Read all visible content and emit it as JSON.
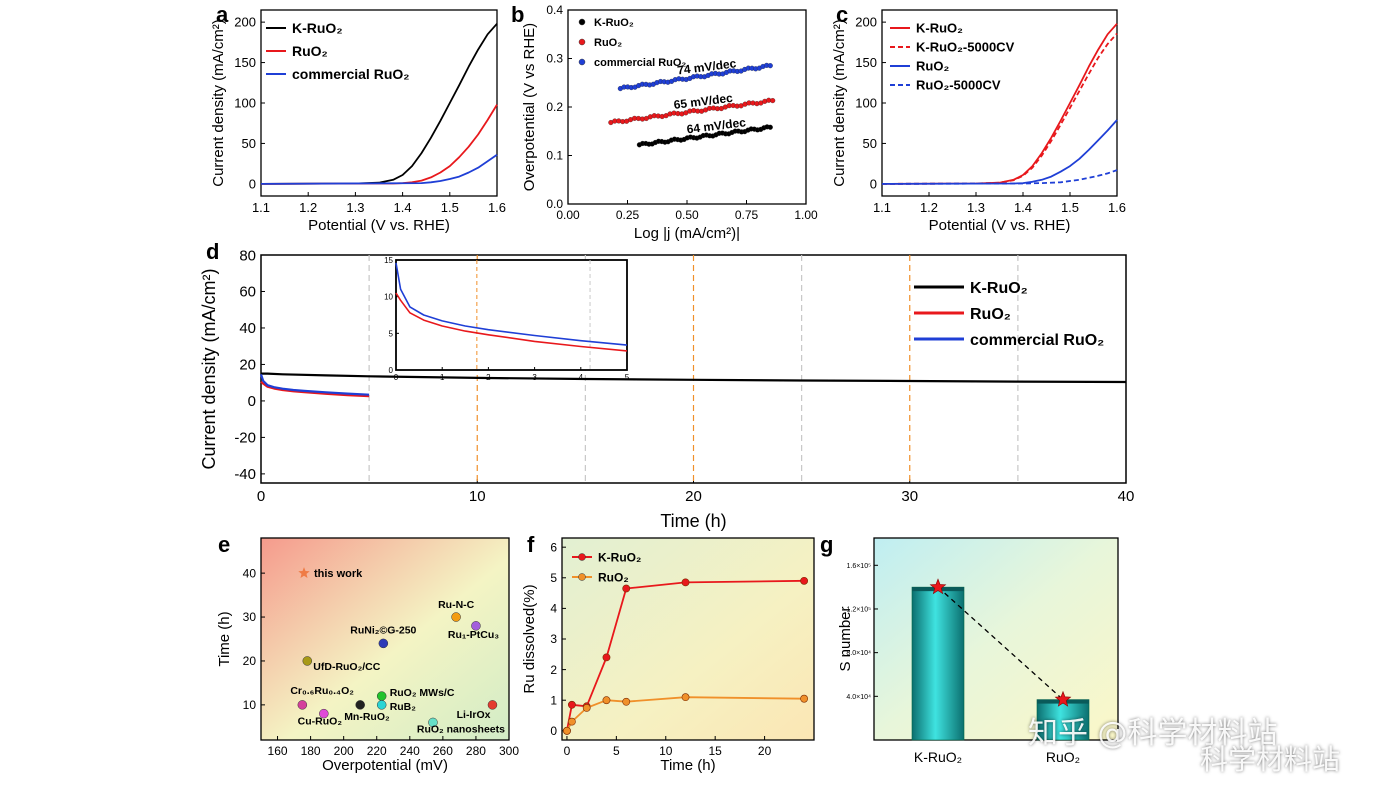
{
  "watermark": {
    "primary": "知乎 @科学材料站",
    "secondary": "科学材料站"
  },
  "chart_data": [
    {
      "panel": "a",
      "type": "line",
      "xlabel": "Potential (V vs. RHE)",
      "ylabel": "Current density (mA/cm²)",
      "xlim": [
        1.1,
        1.6
      ],
      "ylim": [
        -15,
        215
      ],
      "xticks": [
        "1.1",
        "1.2",
        "1.3",
        "1.4",
        "1.5",
        "1.6"
      ],
      "yticks": [
        "0",
        "50",
        "100",
        "150",
        "200"
      ],
      "legend": "top-left",
      "series": [
        {
          "name": "K-RuO₂",
          "color": "#000000",
          "x": [
            1.1,
            1.3,
            1.35,
            1.38,
            1.4,
            1.42,
            1.44,
            1.46,
            1.48,
            1.5,
            1.52,
            1.54,
            1.56,
            1.58,
            1.6
          ],
          "y": [
            0,
            0.5,
            1.5,
            5,
            11,
            22,
            38,
            57,
            78,
            100,
            122,
            145,
            166,
            185,
            198
          ]
        },
        {
          "name": "RuO₂",
          "color": "#e8181c",
          "x": [
            1.1,
            1.38,
            1.4,
            1.42,
            1.44,
            1.46,
            1.48,
            1.5,
            1.52,
            1.54,
            1.56,
            1.58,
            1.6
          ],
          "y": [
            0,
            0.5,
            1,
            2,
            4,
            8,
            14,
            22,
            33,
            46,
            61,
            79,
            98
          ]
        },
        {
          "name": "commercial RuO₂",
          "color": "#1f3fd6",
          "x": [
            1.1,
            1.44,
            1.46,
            1.48,
            1.5,
            1.52,
            1.54,
            1.56,
            1.58,
            1.6
          ],
          "y": [
            0,
            1,
            2,
            3.5,
            6,
            9,
            14,
            20,
            28,
            36
          ]
        }
      ]
    },
    {
      "panel": "b",
      "type": "scatter",
      "xlabel": "Log |j (mA/cm²)|",
      "ylabel": "Overpotential (V vs RHE)",
      "xlim": [
        0.0,
        1.0
      ],
      "ylim": [
        0.0,
        0.4
      ],
      "xticks": [
        "0.00",
        "0.25",
        "0.50",
        "0.75",
        "1.00"
      ],
      "yticks": [
        "0.0",
        "0.1",
        "0.2",
        "0.3",
        "0.4"
      ],
      "legend": "top-left",
      "series": [
        {
          "name": "K-RuO₂",
          "color": "#000000",
          "x_range": [
            0.3,
            0.85
          ],
          "y_range": [
            0.122,
            0.158
          ],
          "slope_label": "64 mV/dec"
        },
        {
          "name": "RuO₂",
          "color": "#e8181c",
          "x_range": [
            0.18,
            0.86
          ],
          "y_range": [
            0.168,
            0.213
          ],
          "slope_label": "65 mV/dec"
        },
        {
          "name": "commercial RuO₂",
          "color": "#1f3fd6",
          "x_range": [
            0.22,
            0.85
          ],
          "y_range": [
            0.238,
            0.285
          ],
          "slope_label": "74 mV/dec"
        }
      ]
    },
    {
      "panel": "c",
      "type": "line",
      "xlabel": "Potential (V vs. RHE)",
      "ylabel": "Current density (mA/cm²)",
      "xlim": [
        1.1,
        1.6
      ],
      "ylim": [
        -15,
        215
      ],
      "xticks": [
        "1.1",
        "1.2",
        "1.3",
        "1.4",
        "1.5",
        "1.6"
      ],
      "yticks": [
        "0",
        "50",
        "100",
        "150",
        "200"
      ],
      "legend": "top-left",
      "series": [
        {
          "name": "K-RuO₂",
          "color": "#e8181c",
          "dash": false,
          "x": [
            1.1,
            1.3,
            1.35,
            1.38,
            1.4,
            1.42,
            1.44,
            1.46,
            1.48,
            1.5,
            1.52,
            1.54,
            1.56,
            1.58,
            1.6
          ],
          "y": [
            0,
            0.5,
            1.5,
            5,
            11,
            22,
            38,
            57,
            78,
            100,
            122,
            145,
            166,
            185,
            198
          ]
        },
        {
          "name": "K-RuO₂-5000CV",
          "color": "#e8181c",
          "dash": true,
          "x": [
            1.1,
            1.3,
            1.35,
            1.38,
            1.4,
            1.42,
            1.44,
            1.46,
            1.48,
            1.5,
            1.52,
            1.54,
            1.56,
            1.58,
            1.6
          ],
          "y": [
            0,
            0.5,
            1.5,
            4.5,
            10,
            20,
            35,
            53,
            73,
            94,
            115,
            136,
            156,
            173,
            186
          ]
        },
        {
          "name": "RuO₂",
          "color": "#1f3fd6",
          "dash": false,
          "x": [
            1.1,
            1.38,
            1.4,
            1.42,
            1.44,
            1.46,
            1.48,
            1.5,
            1.52,
            1.54,
            1.56,
            1.58,
            1.6
          ],
          "y": [
            0,
            0.5,
            1,
            2.5,
            5,
            9,
            15,
            22,
            31,
            42,
            54,
            66,
            79
          ]
        },
        {
          "name": "RuO₂-5000CV",
          "color": "#1f3fd6",
          "dash": true,
          "x": [
            1.1,
            1.4,
            1.44,
            1.48,
            1.5,
            1.52,
            1.54,
            1.56,
            1.58,
            1.6
          ],
          "y": [
            0,
            0.5,
            1,
            2,
            3.5,
            5,
            7.5,
            10,
            13,
            17
          ]
        }
      ]
    },
    {
      "panel": "d",
      "type": "line",
      "xlabel": "Time (h)",
      "ylabel": "Current density (mA/cm²)",
      "xlim": [
        0,
        40
      ],
      "ylim": [
        -45,
        80
      ],
      "xticks": [
        "0",
        "10",
        "20",
        "30",
        "40"
      ],
      "yticks": [
        "-40",
        "-20",
        "0",
        "20",
        "40",
        "60",
        "80"
      ],
      "legend": "right",
      "series": [
        {
          "name": "K-RuO₂",
          "color": "#000000",
          "x": [
            0,
            0.3,
            1,
            3,
            5,
            10,
            15,
            20,
            25,
            30,
            35,
            40
          ],
          "y": [
            15,
            15,
            14.6,
            14,
            13.5,
            12.6,
            12,
            11.6,
            11.2,
            10.9,
            10.6,
            10.4
          ]
        },
        {
          "name": "RuO₂",
          "color": "#e8181c",
          "x": [
            0,
            0.1,
            0.3,
            0.6,
            1,
            1.5,
            2,
            3,
            4,
            5
          ],
          "y": [
            10.5,
            9.5,
            7.8,
            6.8,
            6,
            5.3,
            4.8,
            3.9,
            3.2,
            2.6
          ]
        },
        {
          "name": "commercial RuO₂",
          "color": "#1f3fd6",
          "x": [
            0,
            0.1,
            0.3,
            0.6,
            1,
            1.5,
            2,
            3,
            4,
            5
          ],
          "y": [
            14.6,
            11,
            8.6,
            7.5,
            6.7,
            6,
            5.5,
            4.7,
            4,
            3.4
          ]
        }
      ],
      "inset": {
        "xlim": [
          0,
          5
        ],
        "ylim": [
          0,
          15
        ],
        "xticks": [
          "0",
          "1",
          "2",
          "3",
          "4",
          "5"
        ],
        "yticks": [
          "0",
          "5",
          "10",
          "15"
        ]
      }
    },
    {
      "panel": "e",
      "type": "scatter",
      "xlabel": "Overpotential (mV)",
      "ylabel": "Time (h)",
      "xlim": [
        150,
        300
      ],
      "ylim": [
        2,
        48
      ],
      "xticks": [
        "160",
        "180",
        "200",
        "220",
        "240",
        "260",
        "280",
        "300"
      ],
      "yticks": [
        "10",
        "20",
        "30",
        "40"
      ],
      "points": [
        {
          "label": "this work",
          "x": 176,
          "y": 40,
          "color": "#ef7b45",
          "marker": "star"
        },
        {
          "label": "Ru-N-C",
          "x": 268,
          "y": 30,
          "color": "#f39c12"
        },
        {
          "label": "RuNi₂©G-250",
          "x": 224,
          "y": 24,
          "color": "#2e3bb8"
        },
        {
          "label": "Ru₁-PtCu₃",
          "x": 280,
          "y": 28,
          "color": "#a35fdc"
        },
        {
          "label": "UfD-RuO₂/CC",
          "x": 178,
          "y": 20,
          "color": "#a89a16"
        },
        {
          "label": "Cr₀.₆Ru₀.₄O₂",
          "x": 175,
          "y": 10,
          "color": "#d43f9c"
        },
        {
          "label": "Mn-RuO₂",
          "x": 210,
          "y": 10,
          "color": "#222222"
        },
        {
          "label": "RuO₂ MWs/C",
          "x": 223,
          "y": 12,
          "color": "#22c22b"
        },
        {
          "label": "RuB₂",
          "x": 223,
          "y": 10,
          "color": "#2ad4d4"
        },
        {
          "label": "Li-IrOx",
          "x": 290,
          "y": 10,
          "color": "#e43a30"
        },
        {
          "label": "Cu-RuO₂",
          "x": 188,
          "y": 8,
          "color": "#e04ad8"
        },
        {
          "label": "RuO₂ nanosheets",
          "x": 254,
          "y": 6,
          "color": "#66e0c7"
        }
      ]
    },
    {
      "panel": "f",
      "type": "line",
      "xlabel": "Time (h)",
      "ylabel": "Ru dissolved(%)",
      "xlim": [
        -0.5,
        25
      ],
      "ylim": [
        -0.3,
        6.3
      ],
      "xticks": [
        "0",
        "5",
        "10",
        "15",
        "20"
      ],
      "yticks": [
        "0",
        "1",
        "2",
        "3",
        "4",
        "5",
        "6"
      ],
      "legend": "top-left",
      "series": [
        {
          "name": "K-RuO₂",
          "color": "#e8181c",
          "x": [
            0,
            0.5,
            2,
            4,
            6,
            12,
            24
          ],
          "y": [
            0,
            0.85,
            0.8,
            2.4,
            4.65,
            4.85,
            4.9
          ]
        },
        {
          "name": "RuO₂",
          "color": "#f0902a",
          "x": [
            0,
            0.5,
            2,
            4,
            6,
            12,
            24
          ],
          "y": [
            0,
            0.3,
            0.75,
            1.0,
            0.95,
            1.1,
            1.05
          ]
        }
      ]
    },
    {
      "panel": "g",
      "type": "bar",
      "ylabel": "S number",
      "categories": [
        "K-RuO₂",
        "RuO₂"
      ],
      "values": [
        140000,
        37000
      ],
      "ylim": [
        0,
        185000
      ],
      "yticks": [
        "4.0×10⁴",
        "8.0×10⁴",
        "1.2×10⁵",
        "1.6×10⁵"
      ]
    }
  ],
  "panel_letters": {
    "a": "a",
    "b": "b",
    "c": "c",
    "d": "d",
    "e": "e",
    "f": "f",
    "g": "g"
  }
}
